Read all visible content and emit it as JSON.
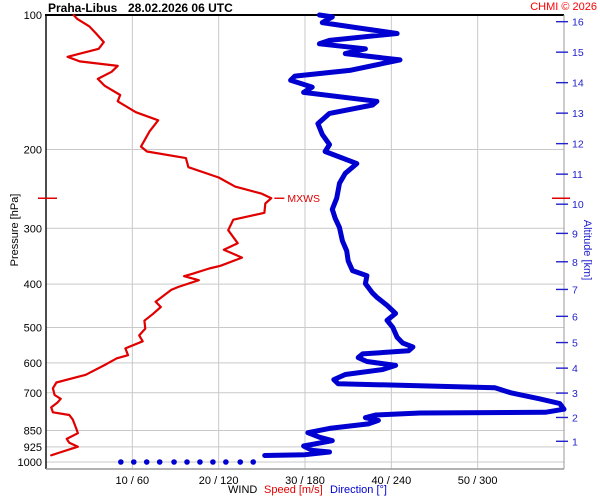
{
  "header": {
    "station": "Praha-Libus",
    "datetime": "28.02.2026 06 UTC",
    "copyright": "CHMI © 2026"
  },
  "colors": {
    "speed": "#e00000",
    "direction": "#0000d0",
    "copyright": "#ff0000",
    "grid": "#c9c9c9",
    "altitude_axis": "#2222cc",
    "border_top_left": "#000000",
    "border_right_bottom": "#999999"
  },
  "chart_data": {
    "type": "line",
    "title": "Praha-Libus 28.02.2026 06 UTC — vertical wind profile",
    "y_axis": {
      "label": "Pressure [hPa]",
      "scale": "log",
      "range_hpa": [
        100,
        1040
      ],
      "ticks_hpa": [
        100,
        200,
        300,
        400,
        500,
        600,
        700,
        850,
        925,
        1000
      ]
    },
    "y2_axis": {
      "label": "Altitude [km]",
      "ticks": [
        {
          "km": 16,
          "hpa": 103.5
        },
        {
          "km": 15,
          "hpa": 121.1
        },
        {
          "km": 14,
          "hpa": 141.7
        },
        {
          "km": 13,
          "hpa": 165.8
        },
        {
          "km": 12,
          "hpa": 194.0
        },
        {
          "km": 11,
          "hpa": 227.0
        },
        {
          "km": 10,
          "hpa": 265.0
        },
        {
          "km": 9,
          "hpa": 308.0
        },
        {
          "km": 8,
          "hpa": 356.5
        },
        {
          "km": 7,
          "hpa": 411.1
        },
        {
          "km": 6,
          "hpa": 472.2
        },
        {
          "km": 5,
          "hpa": 540.5
        },
        {
          "km": 4,
          "hpa": 616.6
        },
        {
          "km": 3,
          "hpa": 701.2
        },
        {
          "km": 2,
          "hpa": 795.0
        },
        {
          "km": 1,
          "hpa": 898.8
        }
      ]
    },
    "x_axis": {
      "tick_labels": [
        "10 / 60",
        "20 / 120",
        "30 / 180",
        "40 / 240",
        "50 / 300"
      ],
      "speed_ticks_ms": [
        10,
        20,
        30,
        40,
        50
      ],
      "direction_ticks_deg": [
        60,
        120,
        180,
        240,
        300
      ],
      "speed_range_ms": [
        0,
        60
      ],
      "direction_range_deg": [
        0,
        360
      ],
      "caption_wind": "WIND",
      "caption_speed": "Speed [m/s]",
      "caption_direction": "Direction [°]"
    },
    "series": [
      {
        "name": "Speed [m/s]",
        "unit": "m/s",
        "color": "#e00000",
        "width": 2.2,
        "points_hpa_value": [
          [
            100,
            3.2
          ],
          [
            102,
            3.6
          ],
          [
            106,
            5.0
          ],
          [
            110,
            5.8
          ],
          [
            115,
            6.7
          ],
          [
            119,
            6.1
          ],
          [
            124,
            2.5
          ],
          [
            127,
            3.9
          ],
          [
            130,
            8.3
          ],
          [
            134,
            7.6
          ],
          [
            139,
            6.0
          ],
          [
            144,
            6.8
          ],
          [
            151,
            8.6
          ],
          [
            156,
            8.3
          ],
          [
            165,
            10.4
          ],
          [
            172,
            13.0
          ],
          [
            182,
            12.0
          ],
          [
            197,
            11.0
          ],
          [
            202,
            11.7
          ],
          [
            209,
            16.2
          ],
          [
            219,
            16.5
          ],
          [
            231,
            20.0
          ],
          [
            242,
            21.9
          ],
          [
            251,
            25.0
          ],
          [
            257,
            26.1
          ],
          [
            264,
            25.4
          ],
          [
            277,
            25.3
          ],
          [
            287,
            21.7
          ],
          [
            303,
            21.1
          ],
          [
            324,
            22.2
          ],
          [
            335,
            20.6
          ],
          [
            349,
            22.7
          ],
          [
            364,
            20.2
          ],
          [
            369,
            18.9
          ],
          [
            379,
            17.0
          ],
          [
            384,
            16.0
          ],
          [
            392,
            17.7
          ],
          [
            406,
            15.3
          ],
          [
            412,
            14.5
          ],
          [
            438,
            12.7
          ],
          [
            450,
            13.3
          ],
          [
            466,
            12.4
          ],
          [
            483,
            11.4
          ],
          [
            503,
            11.5
          ],
          [
            521,
            10.8
          ],
          [
            537,
            11.2
          ],
          [
            557,
            9.2
          ],
          [
            577,
            9.5
          ],
          [
            586,
            8.2
          ],
          [
            604,
            7.0
          ],
          [
            638,
            4.6
          ],
          [
            664,
            1.2
          ],
          [
            684,
            0.8
          ],
          [
            708,
            1.0
          ],
          [
            722,
            1.7
          ],
          [
            737,
            1.3
          ],
          [
            755,
            0.6
          ],
          [
            774,
            0.8
          ],
          [
            785,
            2.7
          ],
          [
            804,
            3.1
          ],
          [
            841,
            3.5
          ],
          [
            862,
            3.7
          ],
          [
            888,
            2.4
          ],
          [
            906,
            2.7
          ],
          [
            924,
            3.7
          ],
          [
            952,
            1.6
          ],
          [
            966,
            0.6
          ]
        ]
      },
      {
        "name": "Direction [°]",
        "unit": "deg",
        "color": "#0000d0",
        "width": 5,
        "points_hpa_value": [
          [
            100,
            190
          ],
          [
            101,
            199
          ],
          [
            104,
            192
          ],
          [
            107,
            218
          ],
          [
            110,
            244
          ],
          [
            114,
            197
          ],
          [
            116,
            190
          ],
          [
            119,
            222
          ],
          [
            122,
            208
          ],
          [
            126,
            246
          ],
          [
            133,
            211
          ],
          [
            137,
            173
          ],
          [
            140,
            170
          ],
          [
            145,
            185
          ],
          [
            149,
            179
          ],
          [
            156,
            230
          ],
          [
            159,
            227
          ],
          [
            166,
            197
          ],
          [
            175,
            189
          ],
          [
            185,
            192
          ],
          [
            195,
            197
          ],
          [
            202,
            194
          ],
          [
            215,
            216
          ],
          [
            226,
            208
          ],
          [
            238,
            204
          ],
          [
            257,
            202
          ],
          [
            272,
            199
          ],
          [
            285,
            201
          ],
          [
            299,
            204
          ],
          [
            320,
            206
          ],
          [
            337,
            209
          ],
          [
            355,
            210
          ],
          [
            373,
            213
          ],
          [
            383,
            223
          ],
          [
            399,
            222
          ],
          [
            419,
            227
          ],
          [
            428,
            230
          ],
          [
            446,
            237
          ],
          [
            465,
            243
          ],
          [
            482,
            237
          ],
          [
            500,
            241
          ],
          [
            526,
            244
          ],
          [
            542,
            248
          ],
          [
            553,
            255
          ],
          [
            564,
            252
          ],
          [
            573,
            220
          ],
          [
            584,
            217
          ],
          [
            596,
            223
          ],
          [
            608,
            243
          ],
          [
            621,
            234
          ],
          [
            637,
            208
          ],
          [
            654,
            200
          ],
          [
            668,
            203
          ],
          [
            682,
            312
          ],
          [
            700,
            323
          ],
          [
            722,
            343
          ],
          [
            740,
            357
          ],
          [
            762,
            360
          ],
          [
            774,
            347
          ],
          [
            777,
            260
          ],
          [
            785,
            229
          ],
          [
            796,
            222
          ],
          [
            807,
            231
          ],
          [
            822,
            224
          ],
          [
            841,
            197
          ],
          [
            860,
            182
          ],
          [
            880,
            190
          ],
          [
            896,
            199
          ],
          [
            921,
            179
          ],
          [
            942,
            185
          ],
          [
            950,
            197
          ],
          [
            963,
            180
          ],
          [
            967,
            152
          ]
        ]
      }
    ],
    "surface_direction_dots": {
      "pressure_hpa": 1000,
      "directions_deg": [
        52,
        61,
        70,
        79,
        89,
        98,
        107,
        116,
        125,
        135,
        144
      ]
    },
    "max_wind_marker": {
      "label": "MXWS",
      "pressure_hpa": 257,
      "speed_ms": 26.1
    }
  }
}
